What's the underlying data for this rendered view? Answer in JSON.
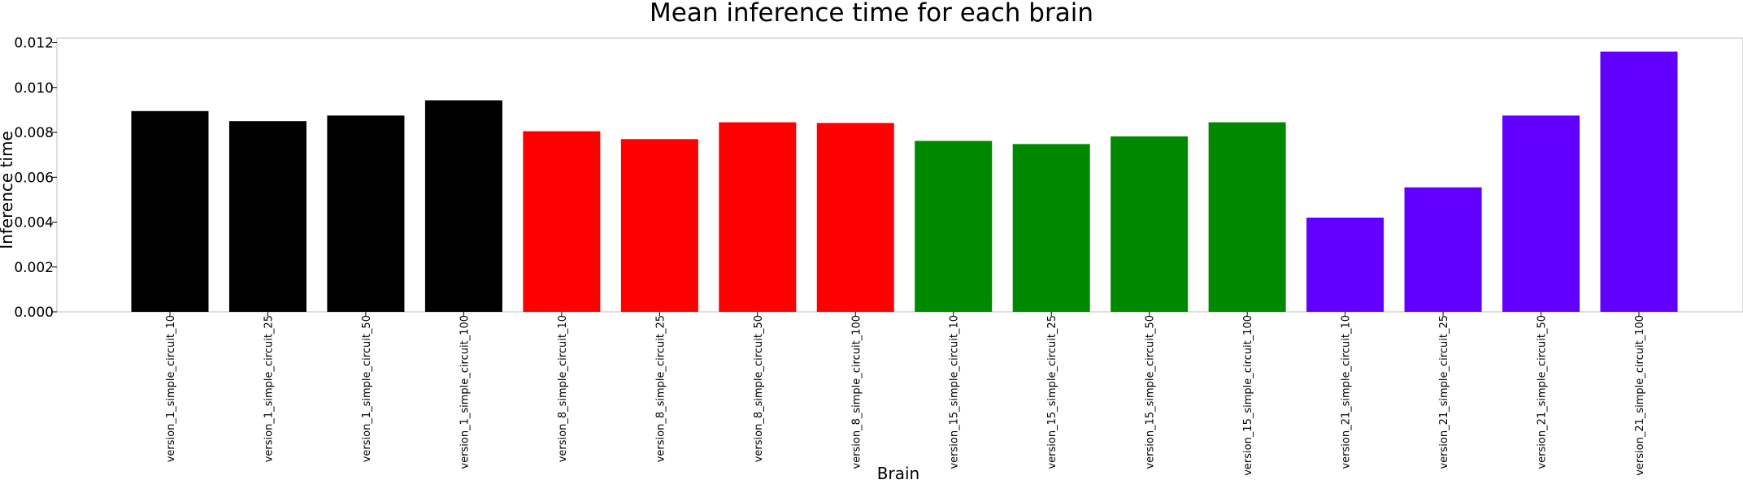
{
  "chart_data": {
    "type": "bar",
    "title": "Mean inference time for each brain",
    "xlabel": "Brain",
    "ylabel": "Inference time",
    "ylim": [
      0,
      0.0122
    ],
    "yticks": [
      "0.000",
      "0.002",
      "0.004",
      "0.006",
      "0.008",
      "0.010",
      "0.012"
    ],
    "grid": false,
    "categories": [
      "version_1_simple_circuit_10",
      "version_1_simple_circuit_25",
      "version_1_simple_circuit_50",
      "version_1_simple_circuit_100",
      "version_8_simple_circuit_10",
      "version_8_simple_circuit_25",
      "version_8_simple_circuit_50",
      "version_8_simple_circuit_100",
      "version_15_simple_circuit_10",
      "version_15_simple_circuit_25",
      "version_15_simple_circuit_50",
      "version_15_simple_circuit_100",
      "version_21_simple_circuit_10",
      "version_21_simple_circuit_25",
      "version_21_simple_circuit_50",
      "version_21_simple_circuit_100"
    ],
    "values": [
      0.00895,
      0.0085,
      0.00875,
      0.00943,
      0.00805,
      0.0077,
      0.00845,
      0.00842,
      0.00762,
      0.00748,
      0.00782,
      0.00845,
      0.0042,
      0.00555,
      0.00875,
      0.0116
    ],
    "colors": [
      "#000000",
      "#000000",
      "#000000",
      "#000000",
      "#ff0000",
      "#ff0000",
      "#ff0000",
      "#ff0000",
      "#008800",
      "#008800",
      "#008800",
      "#008800",
      "#6200ff",
      "#6200ff",
      "#6200ff",
      "#6200ff"
    ]
  }
}
